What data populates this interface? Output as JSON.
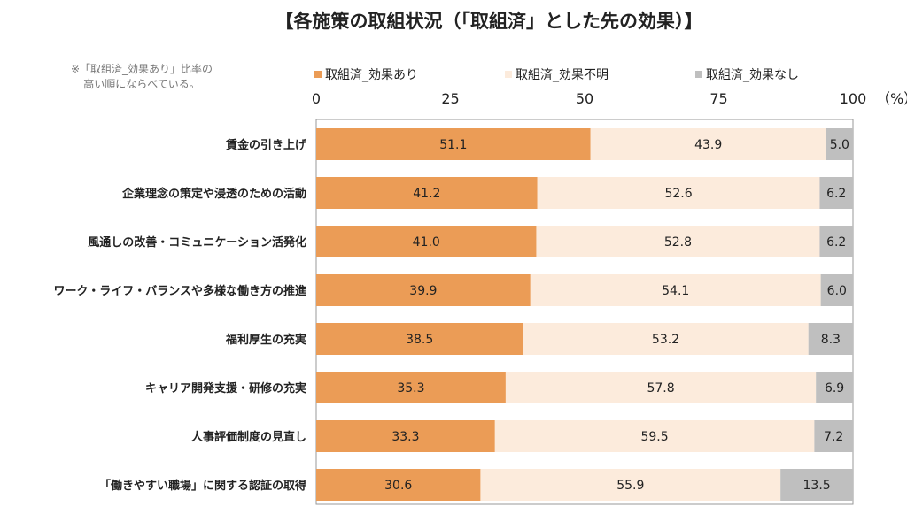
{
  "chart_data": {
    "type": "bar",
    "orientation": "horizontal-stacked-100",
    "title": "【各施策の取組状況（「取組済」とした先の効果）】",
    "note": "※「取組済_効果あり」比率の高い順にならべている。",
    "note_lines": [
      "※「取組済_効果あり」比率の",
      "高い順にならべている。"
    ],
    "unit": "（%）",
    "xlim": [
      0,
      100
    ],
    "ticks": [
      "0",
      "25",
      "50",
      "75",
      "100"
    ],
    "legend_position": "top",
    "categories": [
      "賃金の引き上げ",
      "企業理念の策定や浸透のための活動",
      "風通しの改善・コミュニケーション活発化",
      "ワーク・ライフ・バランスや多様な働き方の推進",
      "福利厚生の充実",
      "キャリア開発支援・研修の充実",
      "人事評価制度の見直し",
      "「働きやすい職場」に関する認証の取得"
    ],
    "series": [
      {
        "name": "取組済_効果あり",
        "color": "#EB9C56",
        "values": [
          51.1,
          41.2,
          41.0,
          39.9,
          38.5,
          35.3,
          33.3,
          30.6
        ]
      },
      {
        "name": "取組済_効果不明",
        "color": "#FCEBDC",
        "values": [
          43.9,
          52.6,
          52.8,
          54.1,
          53.2,
          57.8,
          59.5,
          55.9
        ]
      },
      {
        "name": "取組済_効果なし",
        "color": "#BFBFBF",
        "values": [
          5.0,
          6.2,
          6.2,
          6.0,
          8.3,
          6.9,
          7.2,
          13.5
        ]
      }
    ]
  }
}
